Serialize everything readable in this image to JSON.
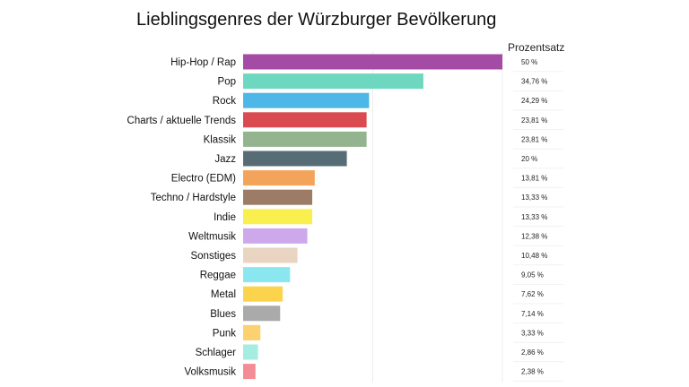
{
  "chart_data": {
    "type": "bar",
    "orientation": "horizontal",
    "title": "Lieblingsgenres der Würzburger Bevölkerung",
    "value_column_header": "Prozentsatz",
    "categories": [
      "Hip-Hop / Rap",
      "Pop",
      "Rock",
      "Charts / aktuelle Trends",
      "Klassik",
      "Jazz",
      "Electro (EDM)",
      "Techno / Hardstyle",
      "Indie",
      "Weltmusik",
      "Sonstiges",
      "Reggae",
      "Metal",
      "Blues",
      "Punk",
      "Schlager",
      "Volksmusik"
    ],
    "values": [
      50,
      34.76,
      24.29,
      23.81,
      23.81,
      20,
      13.81,
      13.33,
      13.33,
      12.38,
      10.48,
      9.05,
      7.62,
      7.14,
      3.33,
      2.86,
      2.38
    ],
    "value_labels": [
      "50 %",
      "34,76 %",
      "24,29 %",
      "23,81 %",
      "23,81 %",
      "20 %",
      "13,81 %",
      "13,33 %",
      "13,33 %",
      "12,38 %",
      "10,48 %",
      "9,05 %",
      "7,62 %",
      "7,14 %",
      "3,33 %",
      "2,86 %",
      "2,38 %"
    ],
    "colors": [
      "#a44ba6",
      "#6dd8bf",
      "#4db8e8",
      "#d94b50",
      "#93b48e",
      "#566d75",
      "#f4a35a",
      "#9c7c66",
      "#f9ef4f",
      "#cda9ec",
      "#e9d3c1",
      "#8ae7ef",
      "#fbd34d",
      "#aaaaaa",
      "#fdd070",
      "#a5ede0",
      "#f48c93"
    ],
    "xlim": [
      0,
      50
    ],
    "gridlines": [
      25,
      50
    ],
    "grid": true,
    "legend": "none"
  }
}
